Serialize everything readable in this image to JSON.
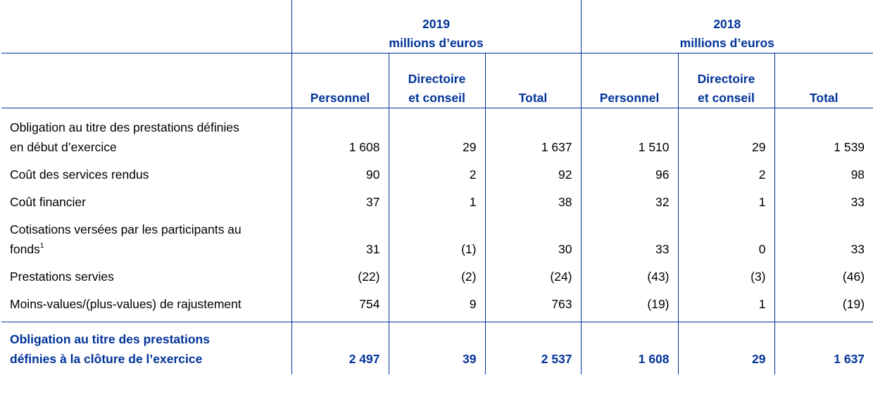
{
  "header": {
    "year_2019": "2019",
    "unit_2019": "millions d’euros",
    "year_2018": "2018",
    "unit_2018": "millions d’euros",
    "columns": {
      "personnel": "Personnel",
      "directoire_line1": "Directoire",
      "directoire_line2": "et conseil",
      "total": "Total"
    }
  },
  "rows": [
    {
      "label_line1": "Obligation au titre des prestations définies",
      "label_line2": "en début d’exercice",
      "values": [
        "1 608",
        "29",
        "1 637",
        "1 510",
        "29",
        "1 539"
      ]
    },
    {
      "label": "Coût des services rendus",
      "values": [
        "90",
        "2",
        "92",
        "96",
        "2",
        "98"
      ]
    },
    {
      "label": "Coût financier",
      "values": [
        "37",
        "1",
        "38",
        "32",
        "1",
        "33"
      ]
    },
    {
      "label_line1": "Cotisations versées par les participants au",
      "label_line2": "fonds",
      "footnote": "1",
      "values": [
        "31",
        "(1)",
        "30",
        "33",
        "0",
        "33"
      ]
    },
    {
      "label": "Prestations servies",
      "values": [
        "(22)",
        "(2)",
        "(24)",
        "(43)",
        "(3)",
        "(46)"
      ]
    },
    {
      "label": "Moins-values/(plus-values) de rajustement",
      "values": [
        "754",
        "9",
        "763",
        "(19)",
        "1",
        "(19)"
      ]
    }
  ],
  "total": {
    "label_line1": "Obligation au titre des prestations",
    "label_line2": "définies à la clôture de l’exercice",
    "values": [
      "2 497",
      "39",
      "2 537",
      "1 608",
      "29",
      "1 637"
    ]
  },
  "colors": {
    "accent": "#003399",
    "text": "#000000"
  }
}
